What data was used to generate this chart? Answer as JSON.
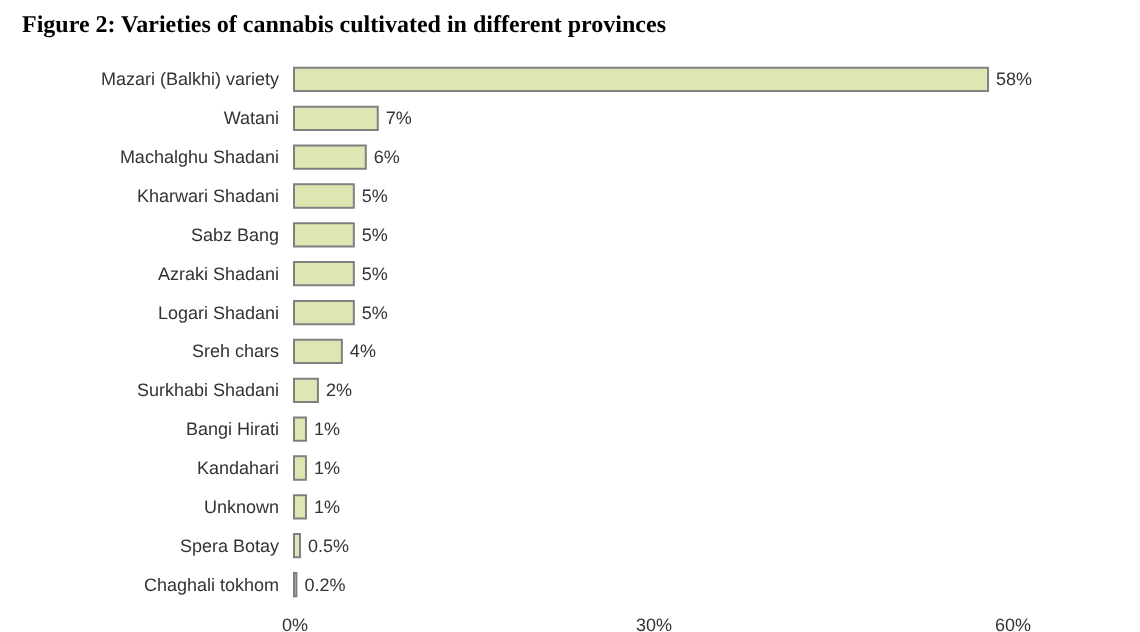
{
  "chart_data": {
    "type": "bar",
    "orientation": "horizontal",
    "title": "Figure 2: Varieties of cannabis cultivated in different provinces",
    "categories": [
      "Mazari (Balkhi) variety",
      "Watani",
      "Machalghu Shadani",
      "Kharwari Shadani",
      "Sabz Bang",
      "Azraki Shadani",
      "Logari Shadani",
      "Sreh chars",
      "Surkhabi Shadani",
      "Bangi Hirati",
      "Kandahari",
      "Unknown",
      "Spera Botay",
      "Chaghali tokhom"
    ],
    "values": [
      58,
      7,
      6,
      5,
      5,
      5,
      5,
      4,
      2,
      1,
      1,
      1,
      0.5,
      0.2
    ],
    "value_labels": [
      "58%",
      "7%",
      "6%",
      "5%",
      "5%",
      "5%",
      "5%",
      "4%",
      "2%",
      "1%",
      "1%",
      "1%",
      "0.5%",
      "0.2%"
    ],
    "color": "#dfe5b3",
    "xlim": [
      0,
      60
    ],
    "xticks": [
      {
        "value": 0,
        "label": "0%"
      },
      {
        "value": 30,
        "label": "30%"
      },
      {
        "value": 60,
        "label": "60%"
      }
    ],
    "grid": false
  }
}
